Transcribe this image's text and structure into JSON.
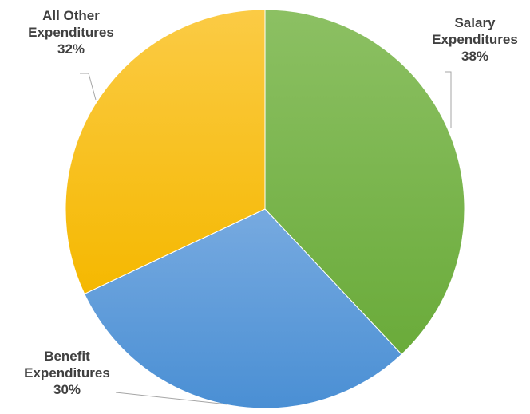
{
  "chart_data": {
    "type": "pie",
    "slices": [
      {
        "label_lines": [
          "Salary",
          "Expenditures"
        ],
        "percent_label": "38%",
        "value": 38,
        "color": "#6aab3a",
        "color_light": "#8cc063"
      },
      {
        "label_lines": [
          "Benefit",
          "Expenditures"
        ],
        "percent_label": "30%",
        "value": 30,
        "color": "#4a8fd4",
        "color_light": "#77aae0"
      },
      {
        "label_lines": [
          "All Other",
          "Expenditures"
        ],
        "percent_label": "32%",
        "value": 32,
        "color": "#f5b800",
        "color_light": "#fbcb45"
      }
    ],
    "start_angle": "12 o'clock",
    "direction": "clockwise",
    "legend": "none"
  }
}
